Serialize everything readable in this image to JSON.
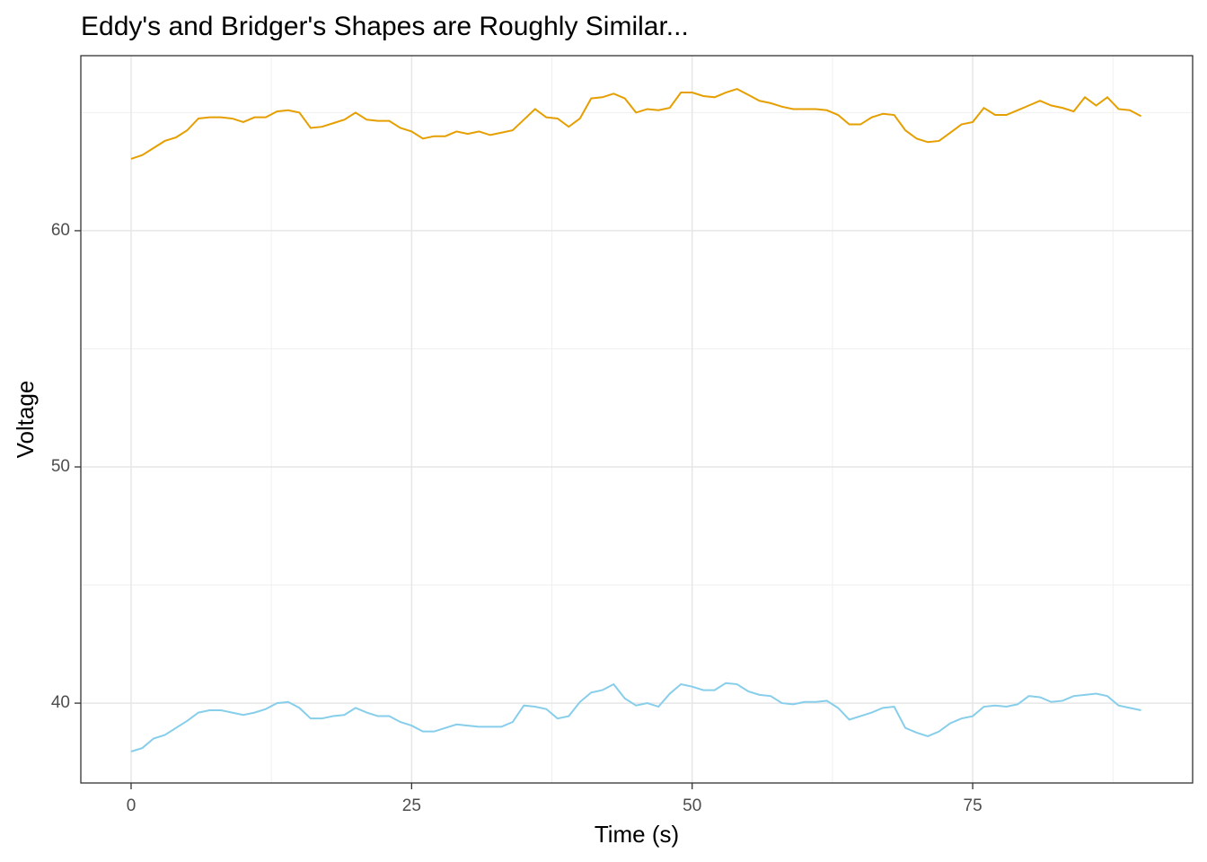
{
  "chart_data": {
    "type": "line",
    "title": "Eddy's and Bridger's Shapes are Roughly Similar...",
    "x_label": "Time (s)",
    "y_label": "Voltage",
    "x": [
      0,
      1,
      2,
      3,
      4,
      5,
      6,
      7,
      8,
      9,
      10,
      11,
      12,
      13,
      14,
      15,
      16,
      17,
      18,
      19,
      20,
      21,
      22,
      23,
      24,
      25,
      26,
      27,
      28,
      29,
      30,
      31,
      32,
      33,
      34,
      35,
      36,
      37,
      38,
      39,
      40,
      41,
      42,
      43,
      44,
      45,
      46,
      47,
      48,
      49,
      50,
      51,
      52,
      53,
      54,
      55,
      56,
      57,
      58,
      59,
      60,
      61,
      62,
      63,
      64,
      65,
      66,
      67,
      68,
      69,
      70,
      71,
      72,
      73,
      74,
      75,
      76,
      77,
      78,
      79,
      80,
      81,
      82,
      83,
      84,
      85,
      86,
      87,
      88,
      89,
      90
    ],
    "series": [
      {
        "color": "#E69F00",
        "values": [
          63.04,
          63.2,
          63.5,
          63.8,
          63.95,
          64.25,
          64.75,
          64.8,
          64.8,
          64.75,
          64.6,
          64.8,
          64.8,
          65.05,
          65.1,
          65.0,
          64.35,
          64.4,
          64.55,
          64.7,
          65.0,
          64.7,
          64.65,
          64.65,
          64.35,
          64.2,
          63.9,
          64.0,
          64.0,
          64.2,
          64.1,
          64.2,
          64.05,
          64.15,
          64.25,
          64.7,
          65.15,
          64.8,
          64.75,
          64.4,
          64.75,
          65.6,
          65.65,
          65.8,
          65.6,
          65.0,
          65.15,
          65.1,
          65.2,
          65.85,
          65.85,
          65.7,
          65.65,
          65.85,
          66.0,
          65.75,
          65.5,
          65.4,
          65.25,
          65.15,
          65.15,
          65.15,
          65.1,
          64.9,
          64.5,
          64.5,
          64.8,
          64.95,
          64.9,
          64.25,
          63.9,
          63.75,
          63.8,
          64.15,
          64.5,
          64.6,
          65.2,
          64.9,
          64.9,
          65.1,
          65.3,
          65.5,
          65.3,
          65.2,
          65.05,
          65.65,
          65.3,
          65.65,
          65.15,
          65.1,
          64.85
        ]
      },
      {
        "color": "#87CEEB",
        "values": [
          37.95,
          38.1,
          38.5,
          38.65,
          38.95,
          39.25,
          39.6,
          39.7,
          39.7,
          39.6,
          39.5,
          39.6,
          39.75,
          40.0,
          40.05,
          39.8,
          39.35,
          39.35,
          39.45,
          39.5,
          39.8,
          39.6,
          39.45,
          39.45,
          39.2,
          39.05,
          38.8,
          38.8,
          38.95,
          39.1,
          39.05,
          39.0,
          39.0,
          39.0,
          39.2,
          39.9,
          39.85,
          39.75,
          39.35,
          39.45,
          40.05,
          40.45,
          40.55,
          40.8,
          40.2,
          39.9,
          40.0,
          39.85,
          40.4,
          40.8,
          40.7,
          40.55,
          40.55,
          40.85,
          40.8,
          40.5,
          40.35,
          40.3,
          40.0,
          39.95,
          40.05,
          40.05,
          40.1,
          39.8,
          39.3,
          39.45,
          39.6,
          39.8,
          39.85,
          38.95,
          38.75,
          38.6,
          38.8,
          39.15,
          39.35,
          39.45,
          39.85,
          39.9,
          39.85,
          39.95,
          40.3,
          40.25,
          40.05,
          40.1,
          40.3,
          40.35,
          40.4,
          40.3,
          39.9,
          39.8,
          39.7
        ]
      }
    ],
    "xlim": [
      -4.48,
      94.6
    ],
    "ylim": [
      36.62,
      67.41
    ],
    "xticks": [
      0,
      25,
      50,
      75
    ],
    "yticks": [
      40,
      50,
      60
    ],
    "x_minor_ticks": [
      12.5,
      37.5,
      62.5,
      87.5
    ],
    "y_minor_ticks": [
      45,
      55,
      65
    ],
    "grid": true
  }
}
